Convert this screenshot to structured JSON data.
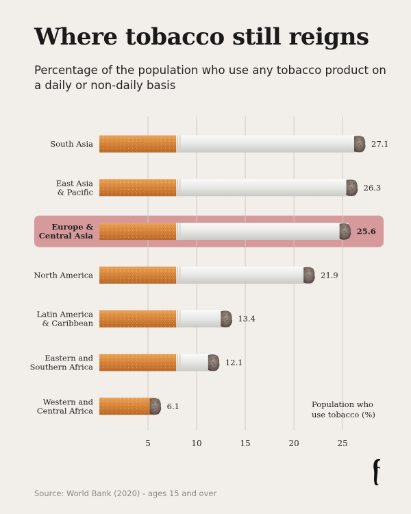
{
  "header": {
    "title": "Where tobacco still reigns",
    "subtitle": "Percentage of the population who use any tobacco product on a daily or non-daily basis"
  },
  "footer": {
    "source": "Source: World Bank (2020) - ages 15 and over"
  },
  "colors": {
    "background": "#f2efea",
    "highlight_band": "#d69a9c",
    "filter": "#d8863a",
    "paper": "#e8e8e6",
    "ash": "#7a6a64",
    "gridline": "#cfcac3"
  },
  "chart_data": {
    "type": "bar",
    "title": "Where tobacco still reigns",
    "subtitle": "Percentage of the population who use any tobacco product on a daily or non-daily basis",
    "categories": [
      "South Asia",
      "East Asia & Pacific",
      "Europe & Central Asia",
      "North America",
      "Latin America & Caribbean",
      "Eastern and Southern Africa",
      "Western and Central Africa"
    ],
    "category_lines": [
      [
        "South Asia"
      ],
      [
        "East Asia",
        "& Pacific"
      ],
      [
        "Europe &",
        "Central Asia"
      ],
      [
        "North America"
      ],
      [
        "Latin America",
        "& Caribbean"
      ],
      [
        "Eastern and",
        "Southern Africa"
      ],
      [
        "Western and",
        "Central Africa"
      ]
    ],
    "values": [
      27.1,
      26.3,
      25.6,
      21.9,
      13.4,
      12.1,
      6.1
    ],
    "value_labels": [
      "27.1",
      "26.3",
      "25.6",
      "21.9",
      "13.4",
      "12.1",
      "6.1"
    ],
    "highlight_index": 2,
    "ticks": [
      5,
      10,
      15,
      20,
      25
    ],
    "tick_labels": [
      "5",
      "10",
      "15",
      "20",
      "25"
    ],
    "xlim": [
      0,
      27.1
    ],
    "xlabel": "Population who use tobacco (%)",
    "xlabel_lines": [
      "Population who",
      "use tobacco (%)"
    ],
    "grid": true,
    "orientation": "horizontal"
  }
}
